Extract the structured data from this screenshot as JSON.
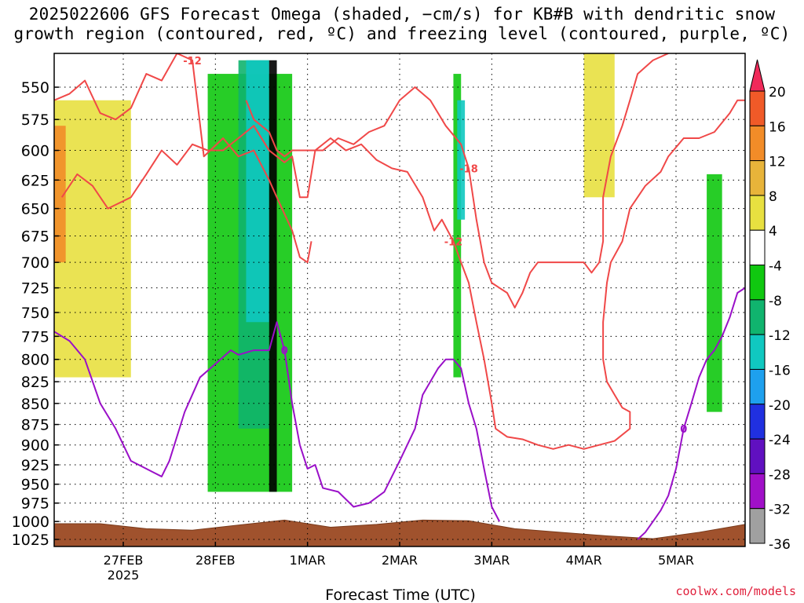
{
  "title_line1": "2025022606 GFS Forecast Omega (shaded, −cm/s) for KB#B with dendritic snow",
  "title_line2": "growth region (contoured, red, ºC) and freezing level (contoured, purple, ºC)",
  "credit": "coolwx.com/models",
  "chart_data": {
    "type": "heatmap",
    "title": "2025022606 GFS Forecast Omega (shaded, −cm/s) for KB#B with dendritic snow growth region (contoured, red, ºC) and freezing level (contoured, purple, ºC)",
    "xlabel": "Forecast Time (UTC)",
    "ylabel": "",
    "x_ticks": [
      {
        "label": "27FEB",
        "sub": "2025",
        "hours": 18
      },
      {
        "label": "28FEB",
        "sub": "",
        "hours": 42
      },
      {
        "label": "1MAR",
        "sub": "",
        "hours": 66
      },
      {
        "label": "2MAR",
        "sub": "",
        "hours": 90
      },
      {
        "label": "3MAR",
        "sub": "",
        "hours": 114
      },
      {
        "label": "4MAR",
        "sub": "",
        "hours": 138
      },
      {
        "label": "5MAR",
        "sub": "",
        "hours": 162
      }
    ],
    "xlim_hours": [
      0,
      180
    ],
    "y_ticks": [
      550,
      575,
      600,
      625,
      650,
      675,
      700,
      725,
      750,
      775,
      800,
      825,
      850,
      875,
      900,
      925,
      950,
      975,
      1000,
      1025
    ],
    "ylim": [
      525,
      1035
    ],
    "y_scale": "log-pressure",
    "grid": true,
    "colorbar": {
      "levels": [
        20,
        16,
        12,
        8,
        4,
        -4,
        -8,
        -12,
        -16,
        -20,
        -24,
        -28,
        -32,
        -36
      ],
      "colors": [
        "#f02a5a",
        "#f05a28",
        "#f28c28",
        "#e8b43a",
        "#e8e040",
        "#ffffff",
        "#10c810",
        "#10b46e",
        "#10c8c0",
        "#1ea0ee",
        "#2030e0",
        "#6010c0",
        "#a010c8",
        "#a0a0a0",
        "#000000"
      ]
    },
    "series": [
      {
        "name": "-12",
        "kind": "contour",
        "color": "#f04848",
        "points": [
          [
            0,
            560
          ],
          [
            4,
            555
          ],
          [
            8,
            545
          ],
          [
            12,
            570
          ],
          [
            16,
            575
          ],
          [
            20,
            566
          ],
          [
            24,
            540
          ],
          [
            28,
            545
          ],
          [
            32,
            525
          ],
          [
            36,
            530
          ],
          [
            39,
            605
          ],
          [
            44,
            590
          ],
          [
            48,
            605
          ],
          [
            52,
            600
          ],
          [
            56,
            625
          ],
          [
            58,
            640
          ],
          [
            62,
            670
          ],
          [
            64,
            695
          ],
          [
            66,
            700
          ],
          [
            67,
            680
          ]
        ]
      },
      {
        "name": "-12",
        "kind": "contour",
        "color": "#f04848",
        "points": [
          [
            2,
            640
          ],
          [
            6,
            620
          ],
          [
            10,
            630
          ],
          [
            14,
            650
          ],
          [
            20,
            640
          ],
          [
            24,
            620
          ],
          [
            28,
            600
          ],
          [
            32,
            612
          ],
          [
            36,
            595
          ],
          [
            40,
            600
          ],
          [
            44,
            600
          ],
          [
            48,
            590
          ],
          [
            52,
            580
          ],
          [
            56,
            600
          ],
          [
            60,
            610
          ],
          [
            62,
            605
          ],
          [
            64,
            640
          ],
          [
            66,
            640
          ],
          [
            68,
            600
          ],
          [
            72,
            590
          ],
          [
            76,
            600
          ],
          [
            80,
            595
          ],
          [
            84,
            608
          ],
          [
            88,
            615
          ],
          [
            92,
            618
          ],
          [
            96,
            640
          ],
          [
            99,
            670
          ],
          [
            101,
            660
          ],
          [
            104,
            680
          ],
          [
            106,
            700
          ],
          [
            108,
            720
          ],
          [
            110,
            760
          ],
          [
            112,
            800
          ],
          [
            114,
            850
          ],
          [
            115,
            880
          ],
          [
            118,
            890
          ],
          [
            122,
            893
          ],
          [
            126,
            900
          ],
          [
            130,
            905
          ],
          [
            134,
            900
          ],
          [
            138,
            905
          ],
          [
            142,
            900
          ],
          [
            146,
            895
          ],
          [
            150,
            880
          ],
          [
            150,
            860
          ],
          [
            148,
            855
          ],
          [
            146,
            840
          ],
          [
            144,
            825
          ],
          [
            143,
            800
          ],
          [
            143,
            760
          ],
          [
            144,
            720
          ],
          [
            145,
            700
          ],
          [
            148,
            680
          ],
          [
            150,
            650
          ],
          [
            154,
            630
          ],
          [
            158,
            618
          ],
          [
            160,
            605
          ],
          [
            164,
            590
          ],
          [
            168,
            590
          ],
          [
            172,
            585
          ],
          [
            176,
            570
          ],
          [
            178,
            560
          ],
          [
            180,
            560
          ]
        ]
      },
      {
        "name": "-18",
        "kind": "contour",
        "color": "#f04848",
        "points": [
          [
            50,
            560
          ],
          [
            52,
            575
          ],
          [
            54,
            580
          ],
          [
            56,
            585
          ],
          [
            58,
            600
          ],
          [
            60,
            605
          ],
          [
            62,
            600
          ],
          [
            66,
            600
          ],
          [
            70,
            600
          ],
          [
            74,
            590
          ],
          [
            78,
            595
          ],
          [
            82,
            585
          ],
          [
            86,
            580
          ],
          [
            90,
            560
          ],
          [
            94,
            550
          ],
          [
            98,
            560
          ],
          [
            102,
            580
          ],
          [
            106,
            595
          ],
          [
            108,
            615
          ],
          [
            110,
            660
          ],
          [
            112,
            700
          ],
          [
            114,
            720
          ],
          [
            118,
            730
          ],
          [
            120,
            745
          ],
          [
            122,
            730
          ],
          [
            124,
            710
          ],
          [
            126,
            700
          ],
          [
            130,
            700
          ],
          [
            134,
            700
          ],
          [
            138,
            700
          ],
          [
            140,
            710
          ],
          [
            142,
            700
          ],
          [
            143,
            680
          ],
          [
            143,
            640
          ],
          [
            145,
            605
          ],
          [
            148,
            580
          ],
          [
            150,
            560
          ],
          [
            152,
            540
          ],
          [
            156,
            530
          ],
          [
            160,
            525
          ]
        ]
      },
      {
        "name": "0",
        "kind": "contour",
        "color": "#9a10c8",
        "points": [
          [
            0,
            770
          ],
          [
            4,
            780
          ],
          [
            8,
            800
          ],
          [
            12,
            850
          ],
          [
            16,
            880
          ],
          [
            20,
            920
          ],
          [
            24,
            930
          ],
          [
            26,
            935
          ],
          [
            28,
            940
          ],
          [
            30,
            920
          ],
          [
            34,
            860
          ],
          [
            38,
            820
          ],
          [
            42,
            805
          ],
          [
            46,
            790
          ],
          [
            48,
            795
          ],
          [
            52,
            790
          ],
          [
            56,
            790
          ],
          [
            58,
            760
          ],
          [
            60,
            790
          ],
          [
            62,
            850
          ],
          [
            64,
            900
          ],
          [
            66,
            930
          ],
          [
            68,
            925
          ],
          [
            70,
            955
          ],
          [
            74,
            960
          ],
          [
            78,
            980
          ],
          [
            82,
            975
          ],
          [
            86,
            960
          ],
          [
            90,
            920
          ],
          [
            94,
            880
          ],
          [
            96,
            840
          ],
          [
            100,
            810
          ],
          [
            102,
            800
          ],
          [
            104,
            800
          ],
          [
            106,
            810
          ],
          [
            108,
            850
          ],
          [
            110,
            880
          ],
          [
            112,
            930
          ],
          [
            114,
            980
          ],
          [
            116,
            1000
          ]
        ]
      },
      {
        "name": "0",
        "kind": "contour",
        "color": "#9a10c8",
        "points": [
          [
            152,
            1025
          ],
          [
            154,
            1015
          ],
          [
            156,
            1000
          ],
          [
            158,
            985
          ],
          [
            160,
            965
          ],
          [
            162,
            930
          ],
          [
            164,
            880
          ],
          [
            166,
            850
          ],
          [
            168,
            820
          ],
          [
            170,
            800
          ],
          [
            172,
            790
          ],
          [
            174,
            775
          ],
          [
            176,
            755
          ],
          [
            178,
            730
          ],
          [
            180,
            725
          ]
        ]
      }
    ],
    "shaded_bands": [
      {
        "level": "positive",
        "color": "#e8e040",
        "x": [
          0,
          20
        ],
        "p": [
          560,
          820
        ]
      },
      {
        "level": "positive",
        "color": "#f28c28",
        "x": [
          0,
          3
        ],
        "p": [
          580,
          700
        ]
      },
      {
        "level": "-8",
        "color": "#10c810",
        "x": [
          40,
          62
        ],
        "p": [
          540,
          960
        ]
      },
      {
        "level": "-12",
        "color": "#10b46e",
        "x": [
          48,
          56
        ],
        "p": [
          530,
          880
        ]
      },
      {
        "level": "-16",
        "color": "#10c8c0",
        "x": [
          50,
          56
        ],
        "p": [
          530,
          760
        ]
      },
      {
        "level": "-36",
        "color": "#000000",
        "x": [
          56,
          58
        ],
        "p": [
          530,
          960
        ]
      },
      {
        "level": "-8",
        "color": "#10c810",
        "x": [
          104,
          106
        ],
        "p": [
          540,
          820
        ]
      },
      {
        "level": "-16",
        "color": "#10c8c0",
        "x": [
          105,
          107
        ],
        "p": [
          560,
          660
        ]
      },
      {
        "level": "-8",
        "color": "#10c810",
        "x": [
          170,
          174
        ],
        "p": [
          620,
          860
        ]
      },
      {
        "level": "positive",
        "color": "#e8e040",
        "x": [
          138,
          146
        ],
        "p": [
          525,
          640
        ]
      }
    ],
    "terrain_color": "#a0522d"
  }
}
